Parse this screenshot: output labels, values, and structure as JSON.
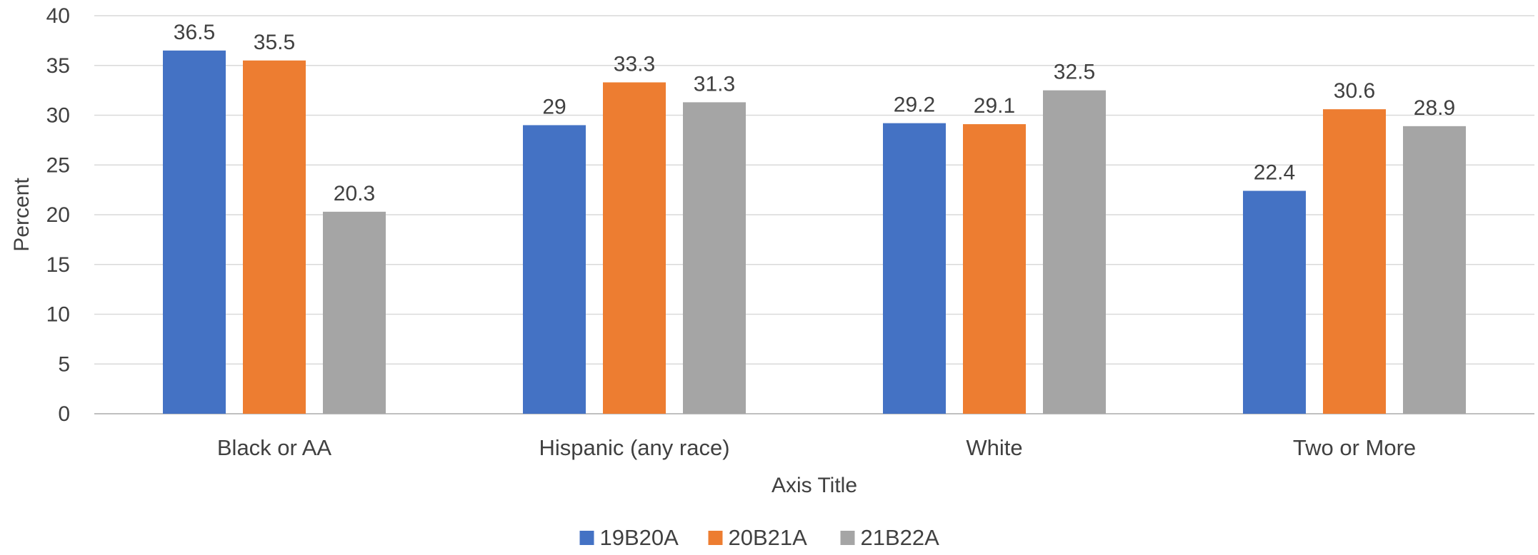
{
  "chart_data": {
    "type": "bar",
    "title": "",
    "xlabel": "Axis Title",
    "ylabel": "Percent",
    "ylim": [
      0,
      40
    ],
    "yticks": [
      0,
      5,
      10,
      15,
      20,
      25,
      30,
      35,
      40
    ],
    "grid": true,
    "legend_position": "bottom",
    "categories": [
      "Black or AA",
      "Hispanic (any race)",
      "White",
      "Two or More"
    ],
    "series": [
      {
        "name": "19B20A",
        "color": "#4472C4",
        "values": [
          36.5,
          29,
          29.2,
          22.4
        ]
      },
      {
        "name": "20B21A",
        "color": "#ED7D31",
        "values": [
          35.5,
          33.3,
          29.1,
          30.6
        ]
      },
      {
        "name": "21B22A",
        "color": "#A5A5A5",
        "values": [
          20.3,
          31.3,
          32.5,
          28.9
        ]
      }
    ]
  }
}
